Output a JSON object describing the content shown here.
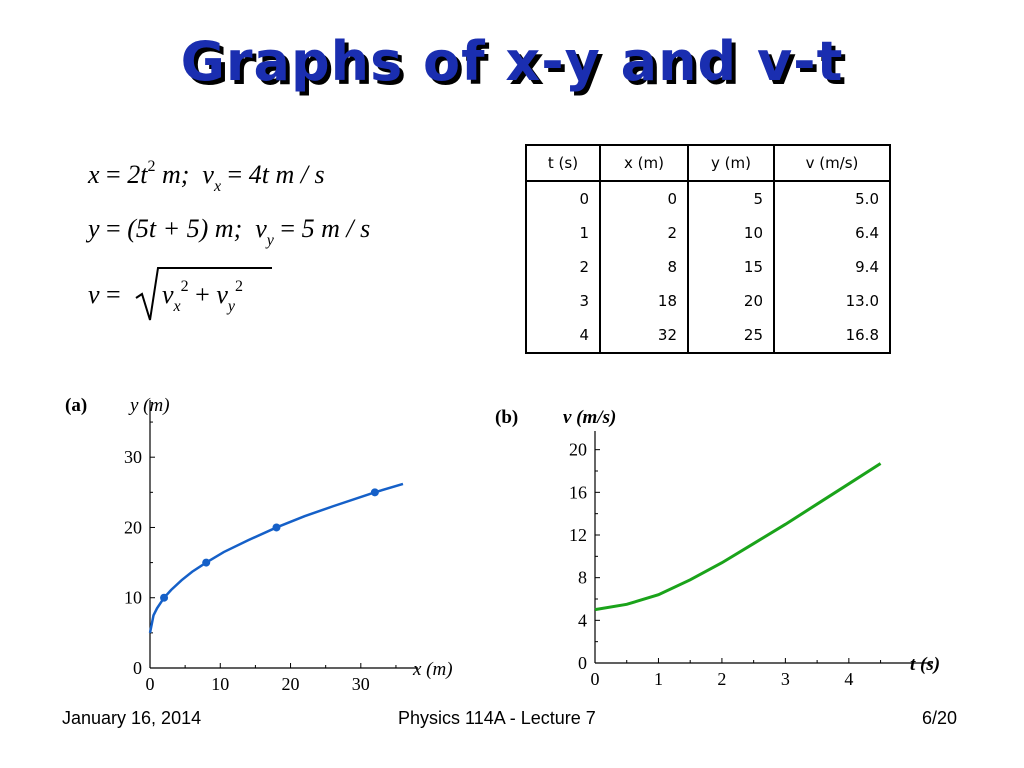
{
  "title": "Graphs of x-y and v-t",
  "equations": {
    "x": "x",
    "eq_sign": "=",
    "x_rhs": "2t",
    "x_pow": "2",
    "unit_m": "m;",
    "vx_v": "v",
    "vx_sub": "x",
    "vx_rhs": "4t m / s",
    "y": "y",
    "y_rhs": "(5t + 5) m;",
    "vy_v": "v",
    "vy_sub": "y",
    "vy_rhs": "5 m / s",
    "v": "v",
    "v_rad_a": "v",
    "v_rad_a_sub": "x",
    "v_rad_pow": "2",
    "plus": "+",
    "v_rad_b": "v",
    "v_rad_b_sub": "y"
  },
  "table": {
    "headers": [
      "t (s)",
      "x (m)",
      "y (m)",
      "v (m/s)"
    ],
    "rows": [
      [
        "0",
        "0",
        "5",
        "5.0"
      ],
      [
        "1",
        "2",
        "10",
        "6.4"
      ],
      [
        "2",
        "8",
        "15",
        "9.4"
      ],
      [
        "3",
        "18",
        "20",
        "13.0"
      ],
      [
        "4",
        "32",
        "25",
        "16.8"
      ]
    ]
  },
  "chart_data": [
    {
      "type": "line",
      "panel_label": "(a)",
      "xlabel": "x (m)",
      "ylabel": "y (m)",
      "xlim": [
        0,
        37
      ],
      "ylim": [
        0,
        37
      ],
      "xticks": [
        "0",
        "10",
        "20",
        "30"
      ],
      "yticks": [
        "0",
        "10",
        "20",
        "30"
      ],
      "color": "#1560c8",
      "series": [
        {
          "points_x": [
            0,
            0.5,
            1,
            2,
            3,
            4.5,
            6,
            8,
            10.5,
            14,
            18,
            22,
            26,
            32,
            36
          ],
          "points_y": [
            5,
            7.5,
            8.5,
            10,
            11.1,
            12.5,
            13.7,
            15,
            16.5,
            18.2,
            20,
            21.6,
            23,
            25,
            26.2
          ]
        }
      ],
      "markers": {
        "x": [
          2,
          8,
          18,
          32
        ],
        "y": [
          10,
          15,
          20,
          25
        ]
      }
    },
    {
      "type": "line",
      "panel_label": "(b)",
      "xlabel": "t (s)",
      "ylabel": "v (m/s)",
      "xlim": [
        0,
        5.2
      ],
      "ylim": [
        0,
        21
      ],
      "xticks": [
        "0",
        "1",
        "2",
        "3",
        "4"
      ],
      "yticks": [
        "0",
        "4",
        "8",
        "12",
        "16",
        "20"
      ],
      "color": "#1aa31a",
      "series": [
        {
          "t": [
            0,
            0.5,
            1,
            1.5,
            2,
            2.5,
            3,
            3.5,
            4,
            4.5
          ],
          "v": [
            5.0,
            5.5,
            6.4,
            7.8,
            9.4,
            11.2,
            13.0,
            14.9,
            16.8,
            18.7
          ]
        }
      ]
    }
  ],
  "footer": {
    "date": "January 16, 2014",
    "course": "Physics 114A  -  Lecture 7",
    "page": "6/20"
  }
}
